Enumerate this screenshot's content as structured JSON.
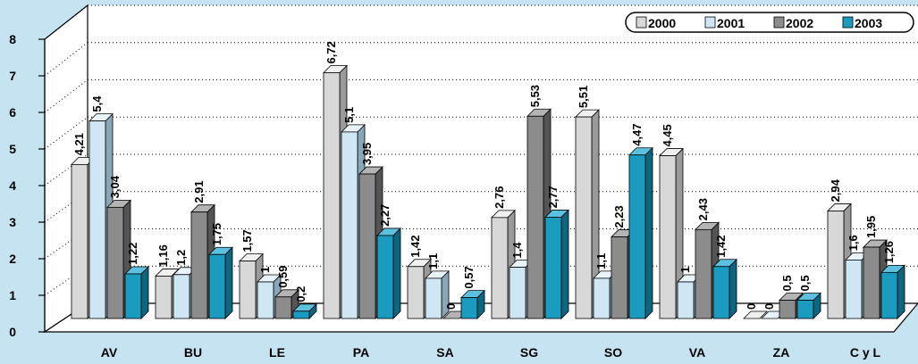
{
  "chart_data": {
    "type": "bar",
    "categories": [
      "AV",
      "BU",
      "LE",
      "PA",
      "SA",
      "SG",
      "SO",
      "VA",
      "ZA",
      "C y L"
    ],
    "series": [
      {
        "name": "2000",
        "values": [
          4.21,
          1.16,
          1.57,
          6.72,
          1.42,
          2.76,
          5.51,
          4.45,
          0,
          2.94
        ],
        "labels": [
          "4,21",
          "1,16",
          "1,57",
          "6,72",
          "1,42",
          "2,76",
          "5,51",
          "4,45",
          "0",
          "2,94"
        ]
      },
      {
        "name": "2001",
        "values": [
          5.4,
          1.2,
          1,
          5.1,
          1.1,
          1.4,
          1.1,
          1,
          0,
          1.6
        ],
        "labels": [
          "5,4",
          "1,2",
          "1",
          "5,1",
          "1,1",
          "1,4",
          "1,1",
          "1",
          "0",
          "1,6"
        ]
      },
      {
        "name": "2002",
        "values": [
          3.04,
          2.91,
          0.59,
          3.95,
          0,
          5.53,
          2.23,
          2.43,
          0.5,
          1.95
        ],
        "labels": [
          "3,04",
          "2,91",
          "0,59",
          "3,95",
          "0",
          "5,53",
          "2,23",
          "2,43",
          "0,5",
          "1,95"
        ]
      },
      {
        "name": "2003",
        "values": [
          1.22,
          1.75,
          0.2,
          2.27,
          0.57,
          2.77,
          4.47,
          1.42,
          0.5,
          1.26
        ],
        "labels": [
          "1,22",
          "1,75",
          "0,2",
          "2,27",
          "0,57",
          "2,77",
          "4,47",
          "1,42",
          "0,5",
          "1,26"
        ]
      }
    ],
    "y_ticks": [
      "0",
      "1",
      "2",
      "3",
      "4",
      "5",
      "6",
      "7",
      "8"
    ],
    "ylim": [
      0,
      8
    ],
    "title": "",
    "xlabel": "",
    "ylabel": "",
    "grid": true,
    "legend": "top-right",
    "colors": {
      "2000": {
        "front": "#d8d8d8",
        "side": "#9a9a9a",
        "top": "#f0f0f0"
      },
      "2001": {
        "front": "#cfe6f4",
        "side": "#8aa7b8",
        "top": "#eaf5fb"
      },
      "2002": {
        "front": "#8c8c8c",
        "side": "#545454",
        "top": "#b4b4b4"
      },
      "2003": {
        "front": "#1a9bbf",
        "side": "#0d6680",
        "top": "#5cc1de"
      },
      "background": "#c6e3f1",
      "plot": "#ffffff"
    }
  }
}
